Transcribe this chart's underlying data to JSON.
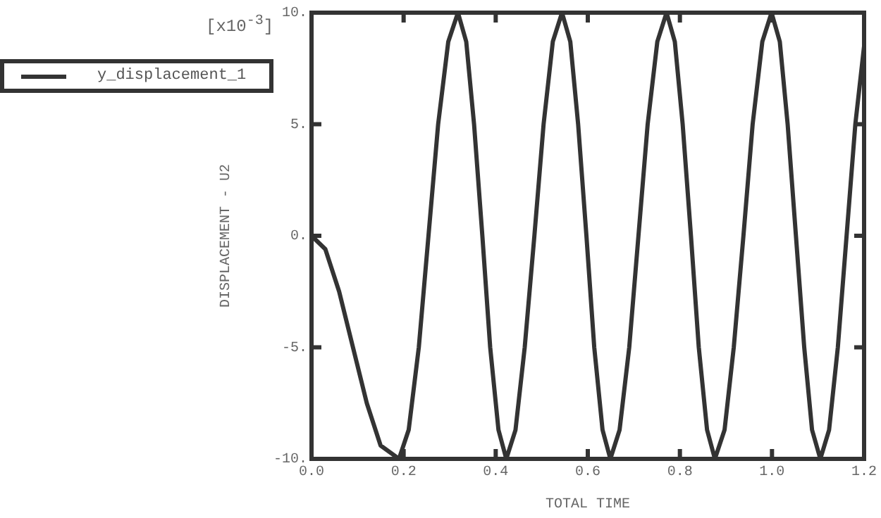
{
  "chart_data": {
    "type": "line",
    "xlabel": "TOTAL TIME",
    "ylabel": "DISPLACEMENT - U2",
    "annotations": [
      "[x10$^{-3}$]"
    ],
    "xlim": [
      0,
      1.2
    ],
    "ylim": [
      -10,
      10
    ],
    "xticks": [
      {
        "value": 0,
        "label": "0.0"
      },
      {
        "value": 0.2,
        "label": "0.2"
      },
      {
        "value": 0.4,
        "label": "0.4"
      },
      {
        "value": 0.6,
        "label": "0.6"
      },
      {
        "value": 0.8,
        "label": "0.8"
      },
      {
        "value": 1,
        "label": "1.0"
      },
      {
        "value": 1.2,
        "label": "1.2"
      }
    ],
    "yticks": [
      {
        "value": -10,
        "label": "-10."
      },
      {
        "value": -5,
        "label": "-5."
      },
      {
        "value": 0,
        "label": "0."
      },
      {
        "value": 5,
        "label": "5."
      },
      {
        "value": 10,
        "label": "10."
      }
    ],
    "grid": false,
    "legend": "top left",
    "marker": "none",
    "line_style": "solid",
    "series": [
      {
        "name": "y_displacement_1",
        "color": "#333333",
        "x": [
          0,
          0.03,
          0.06,
          0.09,
          0.12,
          0.15,
          0.19,
          0.211,
          0.233,
          0.254,
          0.275,
          0.297,
          0.318,
          0.336,
          0.353,
          0.371,
          0.388,
          0.406,
          0.423,
          0.443,
          0.463,
          0.484,
          0.504,
          0.524,
          0.544,
          0.562,
          0.579,
          0.597,
          0.614,
          0.632,
          0.649,
          0.669,
          0.69,
          0.71,
          0.73,
          0.751,
          0.771,
          0.789,
          0.806,
          0.824,
          0.841,
          0.859,
          0.876,
          0.897,
          0.917,
          0.938,
          0.958,
          0.979,
          0.999,
          1.017,
          1.034,
          1.052,
          1.07,
          1.087,
          1.105,
          1.124,
          1.143,
          1.162,
          1.181,
          1.2
        ],
        "values": [
          0,
          -0.6,
          -2.5,
          -5,
          -7.5,
          -9.4,
          -10,
          -8.7,
          -5,
          0,
          5,
          8.7,
          10,
          8.7,
          5,
          0,
          -5,
          -8.7,
          -10,
          -8.7,
          -5,
          0,
          5,
          8.7,
          10,
          8.7,
          5,
          0,
          -5,
          -8.7,
          -10,
          -8.7,
          -5,
          0,
          5,
          8.7,
          10,
          8.7,
          5,
          0,
          -5,
          -8.7,
          -10,
          -8.7,
          -5,
          0,
          5,
          8.7,
          10,
          8.7,
          5,
          0,
          -5,
          -8.7,
          -10,
          -8.7,
          -5,
          0,
          5,
          8.5
        ]
      }
    ]
  }
}
